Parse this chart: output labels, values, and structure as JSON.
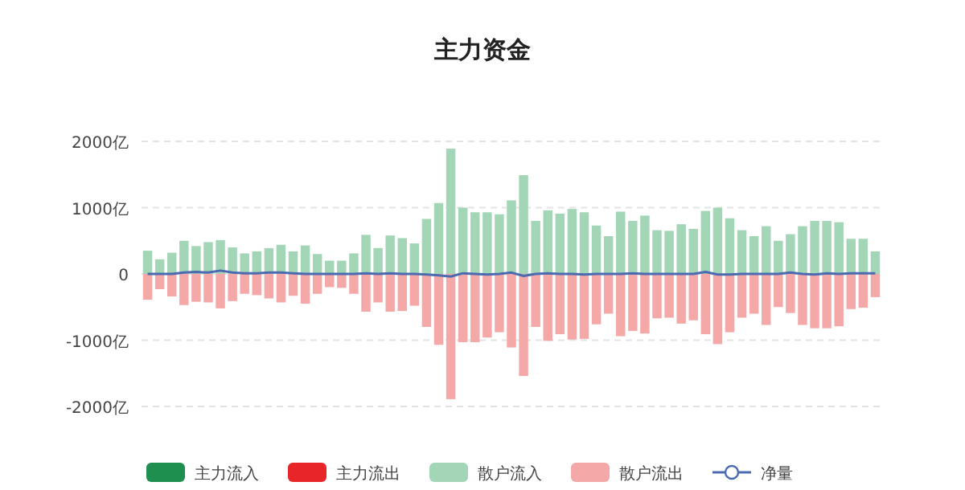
{
  "chart_data": {
    "type": "bar",
    "title": "主力资金",
    "stacked": true,
    "categories": [
      null,
      null,
      null,
      null,
      null,
      null,
      null,
      null,
      null,
      null,
      null,
      null,
      null,
      null,
      null,
      null,
      null,
      null,
      null,
      null,
      null,
      null,
      null,
      null,
      null,
      null,
      null,
      null,
      null,
      null,
      null,
      null,
      null,
      null,
      null,
      null,
      null,
      null,
      null,
      null,
      null,
      null,
      null,
      null,
      null,
      null,
      null,
      null,
      null,
      null,
      null,
      null,
      null,
      null,
      null,
      null,
      null,
      null,
      null,
      null,
      null
    ],
    "series": [
      {
        "name": "主力流入",
        "color": "#1e8f4e",
        "values": [
          null,
          null,
          null,
          null,
          null,
          null,
          null,
          null,
          null,
          null,
          null,
          null,
          null,
          null,
          null,
          null,
          null,
          null,
          null,
          null,
          null,
          null,
          null,
          null,
          null,
          null,
          null,
          null,
          null,
          null,
          null,
          null,
          null,
          null,
          null,
          null,
          null,
          null,
          null,
          null,
          null,
          null,
          null,
          null,
          null,
          null,
          null,
          null,
          null,
          null,
          null,
          null,
          null,
          null,
          null,
          null,
          null,
          null,
          null,
          null,
          null
        ]
      },
      {
        "name": "主力流出",
        "color": "#e8262a",
        "values": [
          null,
          null,
          null,
          null,
          null,
          null,
          null,
          null,
          null,
          null,
          null,
          null,
          null,
          null,
          null,
          null,
          null,
          null,
          null,
          null,
          null,
          null,
          null,
          null,
          null,
          null,
          null,
          null,
          null,
          null,
          null,
          null,
          null,
          null,
          null,
          null,
          null,
          null,
          null,
          null,
          null,
          null,
          null,
          null,
          null,
          null,
          null,
          null,
          null,
          null,
          null,
          null,
          null,
          null,
          null,
          null,
          null,
          null,
          null,
          null,
          null
        ]
      },
      {
        "name": "散户流入",
        "color": "#a3d6b6",
        "values": [
          350,
          220,
          320,
          500,
          420,
          480,
          510,
          400,
          310,
          340,
          390,
          440,
          340,
          430,
          300,
          200,
          200,
          310,
          590,
          390,
          580,
          540,
          460,
          830,
          1070,
          1890,
          1000,
          930,
          930,
          900,
          1110,
          1490,
          800,
          960,
          910,
          980,
          930,
          730,
          570,
          940,
          800,
          880,
          660,
          650,
          750,
          680,
          950,
          1000,
          840,
          660,
          570,
          720,
          500,
          600,
          720,
          800,
          800,
          780,
          530,
          530,
          340
        ]
      },
      {
        "name": "散户流出",
        "color": "#f4a9a8",
        "values": [
          -390,
          -230,
          -340,
          -470,
          -420,
          -430,
          -520,
          -410,
          -300,
          -320,
          -370,
          -430,
          -330,
          -450,
          -300,
          -200,
          -210,
          -300,
          -570,
          -430,
          -570,
          -560,
          -480,
          -800,
          -1070,
          -1890,
          -1030,
          -1030,
          -960,
          -880,
          -1110,
          -1540,
          -800,
          -1010,
          -910,
          -990,
          -980,
          -760,
          -600,
          -940,
          -860,
          -900,
          -670,
          -660,
          -750,
          -700,
          -910,
          -1060,
          -880,
          -660,
          -600,
          -770,
          -500,
          -590,
          -770,
          -820,
          -820,
          -790,
          -530,
          -510,
          -350
        ]
      },
      {
        "name": "净量",
        "type": "line",
        "color": "#4b6ab0",
        "values": [
          0,
          0,
          0,
          20,
          30,
          20,
          50,
          20,
          10,
          10,
          20,
          20,
          10,
          0,
          0,
          0,
          0,
          0,
          10,
          0,
          10,
          0,
          0,
          -10,
          -20,
          -40,
          10,
          0,
          -10,
          0,
          20,
          -30,
          0,
          10,
          0,
          0,
          -10,
          0,
          0,
          0,
          10,
          0,
          0,
          0,
          0,
          0,
          30,
          -10,
          -10,
          0,
          0,
          0,
          0,
          20,
          0,
          -10,
          10,
          0,
          10,
          10,
          10
        ]
      }
    ],
    "ylim": [
      -2000,
      2000
    ],
    "yticks": [
      {
        "value": -2000,
        "label": "-2000亿"
      },
      {
        "value": -1000,
        "label": "-1000亿"
      },
      0,
      {
        "value": 1000,
        "label": "1000亿"
      },
      {
        "value": 2000,
        "label": "2000亿"
      }
    ],
    "grid": "y",
    "tick_labels": "y",
    "legend": "bottom",
    "marker": "none"
  }
}
